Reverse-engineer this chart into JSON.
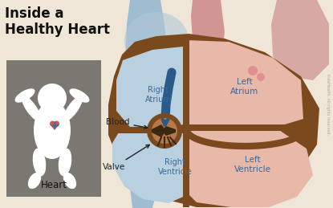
{
  "background_color": "#f0e6d8",
  "title": "Inside a\nHealthy Heart",
  "title_color": "#111111",
  "title_fontsize": 12,
  "inset_box_color": "#7a7870",
  "inset_label": "Heart",
  "heart_brown": "#7a4a1e",
  "heart_fill_pink": "#e8b8a8",
  "heart_fill_blue": "#b8d0e0",
  "vessel_blue": "#a0bcd0",
  "vessel_red": "#cc8888",
  "vessel_red2": "#d4908a",
  "arrow_blue": "#2a5a8a",
  "label_blue": "#3a6a9a",
  "label_dark": "#222222",
  "valve_dark": "#3a2810",
  "copyright": "KidsHealth. All rights reserved.",
  "watermark_color": "#b0a898",
  "right_atrium_label": "Right\nAtrium",
  "left_atrium_label": "Left\nAtrium",
  "right_ventricle_label": "Right\nVentricle",
  "left_ventricle_label": "Left\nVentricle",
  "blood_label": "Blood",
  "valve_label": "Valve",
  "heart_label": "Heart"
}
